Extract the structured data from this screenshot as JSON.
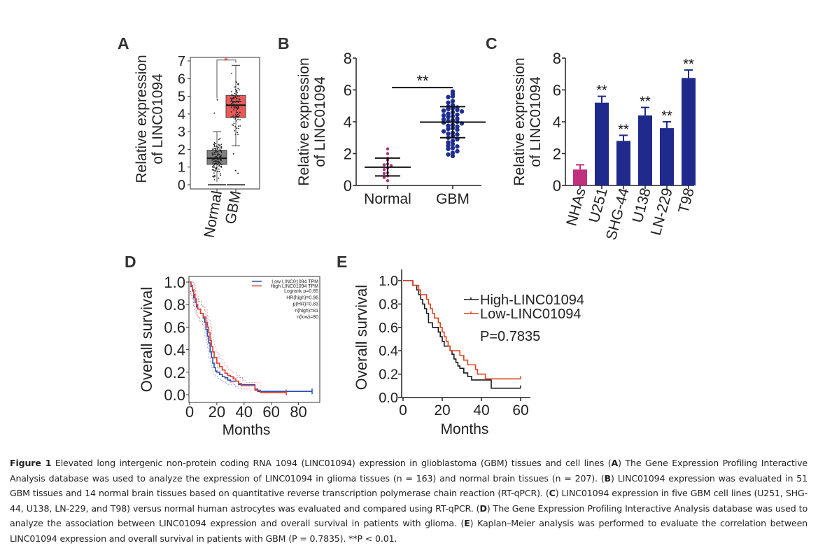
{
  "chart_data": [
    {
      "panel": "A",
      "type": "box",
      "ylabel": "Relative expression of LINC01094",
      "ylim": [
        0,
        7
      ],
      "yticks": [
        0,
        1,
        2,
        3,
        4,
        5,
        6,
        7
      ],
      "categories": [
        "Normal",
        "GBM"
      ],
      "significance": "*",
      "significance_color": "#e8312f",
      "boxes": [
        {
          "name": "Normal",
          "q1": 1.15,
          "median": 1.5,
          "q3": 1.95,
          "whisker_low": 0.0,
          "whisker_high": 3.0,
          "outliers": [
            4.05,
            4.8
          ],
          "color": "#808080",
          "n": 207
        },
        {
          "name": "GBM",
          "q1": 3.8,
          "median": 4.5,
          "q3": 5.05,
          "whisker_low": 2.2,
          "whisker_high": 6.75,
          "outliers": [
            1.75,
            0.8,
            0.65
          ],
          "color": "#e85a5a",
          "n": 163
        }
      ]
    },
    {
      "panel": "B",
      "type": "scatter",
      "ylabel": "Relative expression of LINC01094",
      "ylim": [
        0,
        8
      ],
      "yticks": [
        0,
        2,
        4,
        6,
        8
      ],
      "categories": [
        "Normal",
        "GBM"
      ],
      "significance": "**",
      "groups": [
        {
          "name": "Normal",
          "mean": 1.15,
          "sd_low": 0.6,
          "sd_high": 1.72,
          "color": "#b0307a",
          "values": [
            2.3,
            2.0,
            1.7,
            1.6,
            1.35,
            1.3,
            1.25,
            1.1,
            1.0,
            0.8,
            0.75,
            0.6,
            0.5,
            0.3
          ]
        },
        {
          "name": "GBM",
          "mean": 3.98,
          "sd_low": 3.0,
          "sd_high": 4.95,
          "color": "#1f2f8f",
          "values": [
            5.9,
            5.75,
            5.6,
            5.55,
            5.3,
            5.2,
            5.05,
            4.95,
            4.9,
            4.85,
            4.8,
            4.75,
            4.7,
            4.65,
            4.6,
            4.5,
            4.45,
            4.4,
            4.35,
            4.3,
            4.2,
            4.15,
            4.1,
            4.05,
            4.0,
            3.95,
            3.9,
            3.8,
            3.75,
            3.7,
            3.6,
            3.55,
            3.5,
            3.4,
            3.3,
            3.25,
            3.2,
            3.1,
            3.0,
            2.9,
            2.8,
            2.7,
            2.6,
            2.5,
            2.45,
            2.35,
            2.3,
            2.15,
            2.05,
            1.95,
            1.85
          ]
        }
      ]
    },
    {
      "panel": "C",
      "type": "bar",
      "ylabel": "Relative expression of LINC01094",
      "ylim": [
        0,
        8
      ],
      "yticks": [
        0,
        2,
        4,
        6,
        8
      ],
      "categories": [
        "NHAs",
        "U251",
        "SHG-44",
        "U138",
        "LN-229",
        "T98"
      ],
      "values": [
        1.0,
        5.2,
        2.8,
        4.4,
        3.6,
        6.75
      ],
      "errors": [
        0.3,
        0.4,
        0.35,
        0.5,
        0.4,
        0.5
      ],
      "annotations": [
        "",
        "**",
        "**",
        "**",
        "**",
        "**"
      ],
      "colors": [
        "#c0307f",
        "#1f2a8c",
        "#1f2a8c",
        "#1f2a8c",
        "#1f2a8c",
        "#1f2a8c"
      ]
    },
    {
      "panel": "D",
      "type": "line",
      "xlabel": "Months",
      "ylabel": "Overall survival",
      "xlim": [
        0,
        90
      ],
      "ylim": [
        0,
        1.0
      ],
      "xticks": [
        0,
        20,
        40,
        60,
        80
      ],
      "yticks": [
        "0.0",
        "0.2",
        "0.4",
        "0.6",
        "0.8",
        "1.0"
      ],
      "legend": [
        {
          "label": "Low LINC01094 TPM",
          "color": "#2c4fb0"
        },
        {
          "label": "High LINC01094 TPM",
          "color": "#e03a2e"
        }
      ],
      "stats": [
        "Logrank p=0.85",
        "HR(high)=0.96",
        "p(HR)=0.83",
        "n(high)=81",
        "n(low)=80"
      ],
      "series": [
        {
          "name": "Low LINC01094 TPM",
          "color": "#2c4fb0",
          "x": [
            0,
            1,
            2,
            3,
            4,
            5,
            6,
            8,
            10,
            11,
            12,
            13,
            14,
            15,
            16,
            17,
            18,
            19,
            20,
            22,
            24,
            26,
            28,
            30,
            32,
            36,
            40,
            48,
            50,
            90
          ],
          "y": [
            1.0,
            0.96,
            0.92,
            0.86,
            0.82,
            0.78,
            0.76,
            0.72,
            0.68,
            0.64,
            0.58,
            0.52,
            0.46,
            0.38,
            0.33,
            0.28,
            0.24,
            0.21,
            0.2,
            0.18,
            0.16,
            0.15,
            0.13,
            0.12,
            0.12,
            0.09,
            0.09,
            0.05,
            0.03,
            0.03
          ]
        },
        {
          "name": "High LINC01094 TPM",
          "color": "#e03a2e",
          "x": [
            0,
            1,
            2,
            3,
            4,
            5,
            6,
            8,
            10,
            12,
            13,
            14,
            15,
            16,
            17,
            18,
            20,
            22,
            24,
            26,
            28,
            30,
            32,
            34,
            36,
            38,
            42,
            48,
            52,
            71
          ],
          "y": [
            1.0,
            0.97,
            0.93,
            0.89,
            0.85,
            0.8,
            0.76,
            0.72,
            0.69,
            0.64,
            0.6,
            0.55,
            0.48,
            0.43,
            0.38,
            0.33,
            0.28,
            0.25,
            0.22,
            0.19,
            0.17,
            0.16,
            0.14,
            0.12,
            0.1,
            0.08,
            0.08,
            0.04,
            0.02,
            0.02
          ]
        }
      ]
    },
    {
      "panel": "E",
      "type": "line",
      "xlabel": "Months",
      "ylabel": "Overall survival",
      "xlim": [
        0,
        60
      ],
      "ylim": [
        0,
        1.0
      ],
      "xticks": [
        0,
        20,
        40,
        60
      ],
      "yticks": [
        "0.0",
        "0.2",
        "0.4",
        "0.6",
        "0.8",
        "1.0"
      ],
      "legend": [
        {
          "label": "High-LINC01094",
          "color": "#1a1a1a"
        },
        {
          "label": "Low-LINC01094",
          "color": "#e0421e"
        }
      ],
      "pvalue": "P=0.7835",
      "series": [
        {
          "name": "High-LINC01094",
          "color": "#1a1a1a",
          "x": [
            0,
            5,
            7,
            8,
            9,
            10,
            11,
            12,
            13,
            15,
            18,
            19,
            20,
            21,
            22,
            24,
            25,
            26,
            27,
            28,
            29,
            31,
            32,
            33,
            34,
            35,
            44,
            45,
            60
          ],
          "y": [
            1.0,
            0.96,
            0.92,
            0.88,
            0.84,
            0.8,
            0.76,
            0.72,
            0.64,
            0.6,
            0.56,
            0.52,
            0.48,
            0.44,
            0.44,
            0.4,
            0.37,
            0.33,
            0.3,
            0.27,
            0.25,
            0.21,
            0.21,
            0.18,
            0.18,
            0.15,
            0.15,
            0.08,
            0.08
          ]
        },
        {
          "name": "Low-LINC01094",
          "color": "#e0421e",
          "x": [
            0,
            5,
            8,
            9,
            10,
            12,
            13,
            14,
            15,
            16,
            18,
            19,
            20,
            21,
            22,
            23,
            24,
            29,
            30,
            31,
            33,
            34,
            37,
            38,
            40,
            42,
            60
          ],
          "y": [
            1.0,
            0.96,
            0.92,
            0.88,
            0.88,
            0.84,
            0.8,
            0.76,
            0.72,
            0.68,
            0.64,
            0.6,
            0.56,
            0.52,
            0.48,
            0.44,
            0.4,
            0.36,
            0.36,
            0.32,
            0.28,
            0.28,
            0.24,
            0.2,
            0.2,
            0.16,
            0.16
          ]
        }
      ]
    }
  ],
  "panel_labels": [
    "A",
    "B",
    "C",
    "D",
    "E"
  ],
  "caption": {
    "figure_label": "Figure 1",
    "segments": [
      {
        "t": " Elevated long intergenic non-protein coding RNA 1094 (LINC01094) expression in glioblastoma (GBM) tissues and cell lines (",
        "b": false
      },
      {
        "t": "A",
        "b": true
      },
      {
        "t": ") The Gene Expression Profiling Interactive Analysis database was used to analyze the expression of LINC01094 in glioma tissues (n = 163) and normal brain tissues (n = 207). (",
        "b": false
      },
      {
        "t": "B",
        "b": true
      },
      {
        "t": ") LINC01094 expression was evaluated in 51 GBM tissues and 14 normal brain tissues based on quantitative reverse transcription polymerase chain reaction (RT-qPCR). (",
        "b": false
      },
      {
        "t": "C",
        "b": true
      },
      {
        "t": ") LINC01094 expression in five GBM cell lines (U251, SHG-44, U138, LN-229, and T98) versus normal human astrocytes was evaluated and compared using RT-qPCR. (",
        "b": false
      },
      {
        "t": "D",
        "b": true
      },
      {
        "t": ") The Gene Expression Profiling Interactive Analysis database was used to analyze the association between LINC01094 expression and overall survival in patients with glioma. (",
        "b": false
      },
      {
        "t": "E",
        "b": true
      },
      {
        "t": ") Kaplan–Meier analysis was performed to evaluate the correlation between LINC01094 expression and overall survival in patients with GBM (P = 0.7835). **P < 0.01.",
        "b": false
      }
    ]
  }
}
